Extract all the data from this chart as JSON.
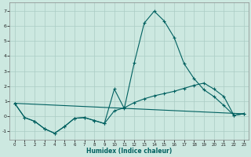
{
  "xlabel": "Humidex (Indice chaleur)",
  "bg_color": "#cce8e0",
  "line_color": "#006060",
  "grid_color": "#aaccc4",
  "xlim": [
    -0.5,
    23.5
  ],
  "ylim": [
    -1.6,
    7.6
  ],
  "yticks": [
    -1,
    0,
    1,
    2,
    3,
    4,
    5,
    6,
    7
  ],
  "xticks": [
    0,
    1,
    2,
    3,
    4,
    5,
    6,
    7,
    8,
    9,
    10,
    11,
    12,
    13,
    14,
    15,
    16,
    17,
    18,
    19,
    20,
    21,
    22,
    23
  ],
  "line1_x": [
    0,
    1,
    2,
    3,
    4,
    5,
    6,
    7,
    8,
    9,
    10,
    11,
    12,
    13,
    14,
    15,
    16,
    17,
    18,
    19,
    20,
    21,
    22,
    23
  ],
  "line1_y": [
    0.85,
    -0.1,
    -0.35,
    -0.85,
    -1.15,
    -0.7,
    -0.15,
    -0.1,
    -0.3,
    -0.5,
    1.8,
    0.5,
    3.55,
    6.2,
    7.0,
    6.35,
    5.25,
    3.5,
    2.5,
    1.75,
    1.3,
    0.7,
    0.05,
    0.15
  ],
  "line2_x": [
    0,
    1,
    2,
    3,
    4,
    5,
    6,
    7,
    8,
    9,
    10,
    11,
    12,
    13,
    14,
    15,
    16,
    17,
    18,
    19,
    20,
    21,
    22,
    23
  ],
  "line2_y": [
    0.85,
    -0.1,
    -0.35,
    -0.85,
    -1.15,
    -0.7,
    -0.15,
    -0.1,
    -0.3,
    -0.5,
    0.35,
    0.55,
    0.9,
    1.15,
    1.35,
    1.5,
    1.65,
    1.85,
    2.05,
    2.2,
    1.8,
    1.3,
    0.05,
    0.15
  ],
  "line3_x": [
    0,
    23
  ],
  "line3_y": [
    0.85,
    0.15
  ]
}
